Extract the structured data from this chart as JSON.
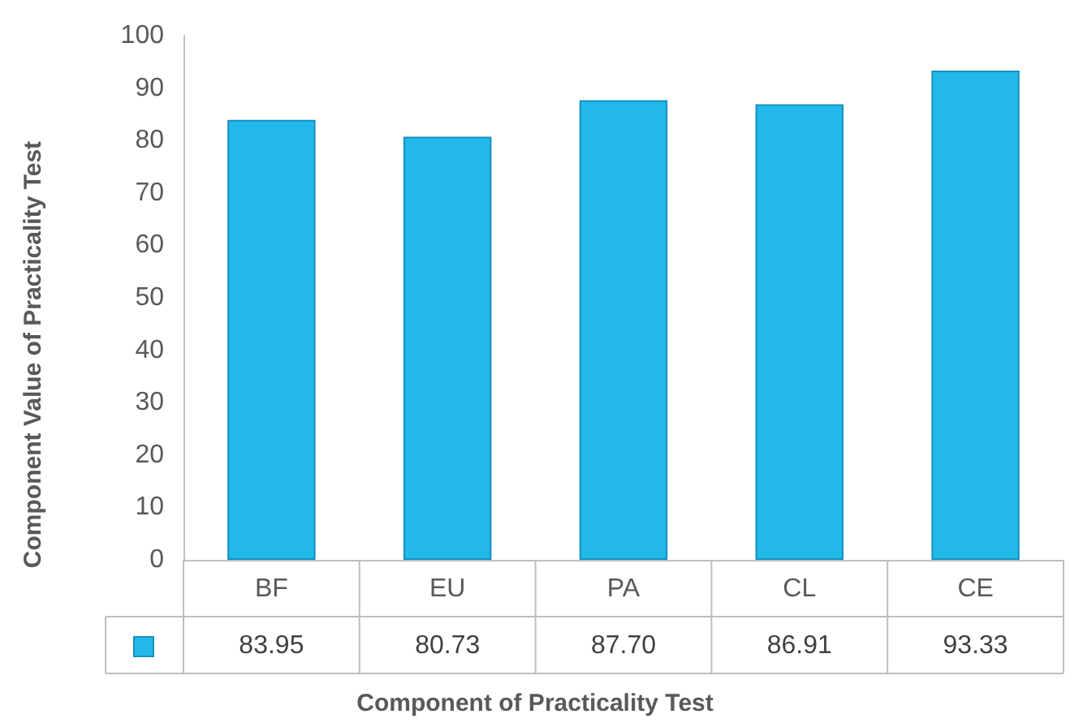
{
  "chart_data": {
    "type": "bar",
    "xlabel": "Component of Practicality Test",
    "ylabel": "Component Value of Practicality Test",
    "categories": [
      "BF",
      "EU",
      "PA",
      "CL",
      "CE"
    ],
    "values": [
      83.95,
      80.73,
      87.7,
      86.91,
      93.33
    ],
    "value_labels": [
      "83.95",
      "80.73",
      "87.70",
      "86.91",
      "93.33"
    ],
    "color": "#22b8ea",
    "ylim": [
      0,
      100
    ],
    "yticks": [
      0,
      10,
      20,
      30,
      40,
      50,
      60,
      70,
      80,
      90,
      100
    ],
    "grid": false
  }
}
